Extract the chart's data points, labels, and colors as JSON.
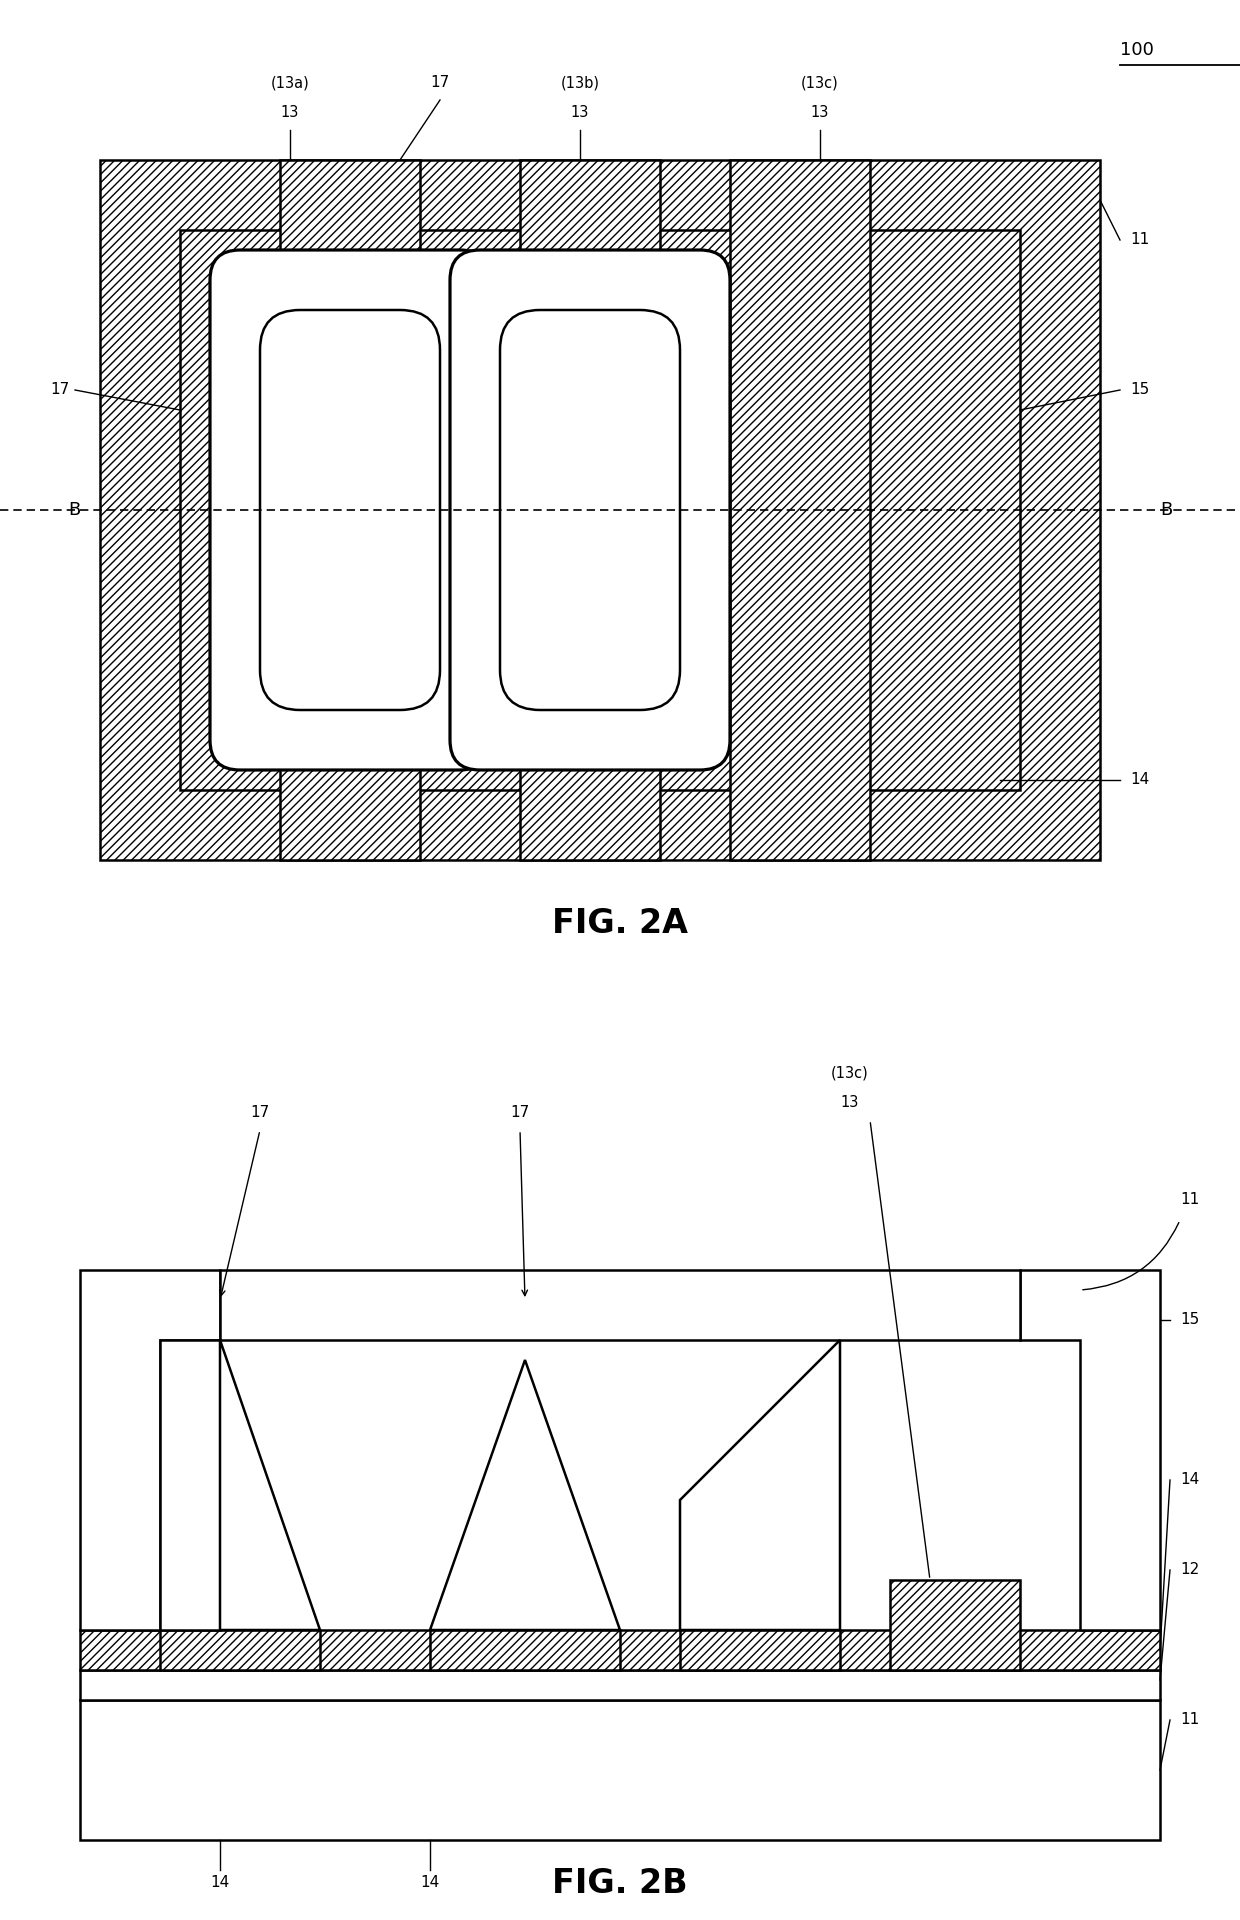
{
  "fig_title_2a": "FIG. 2A",
  "fig_title_2b": "FIG. 2B",
  "label_100": "100",
  "background_color": "#ffffff"
}
